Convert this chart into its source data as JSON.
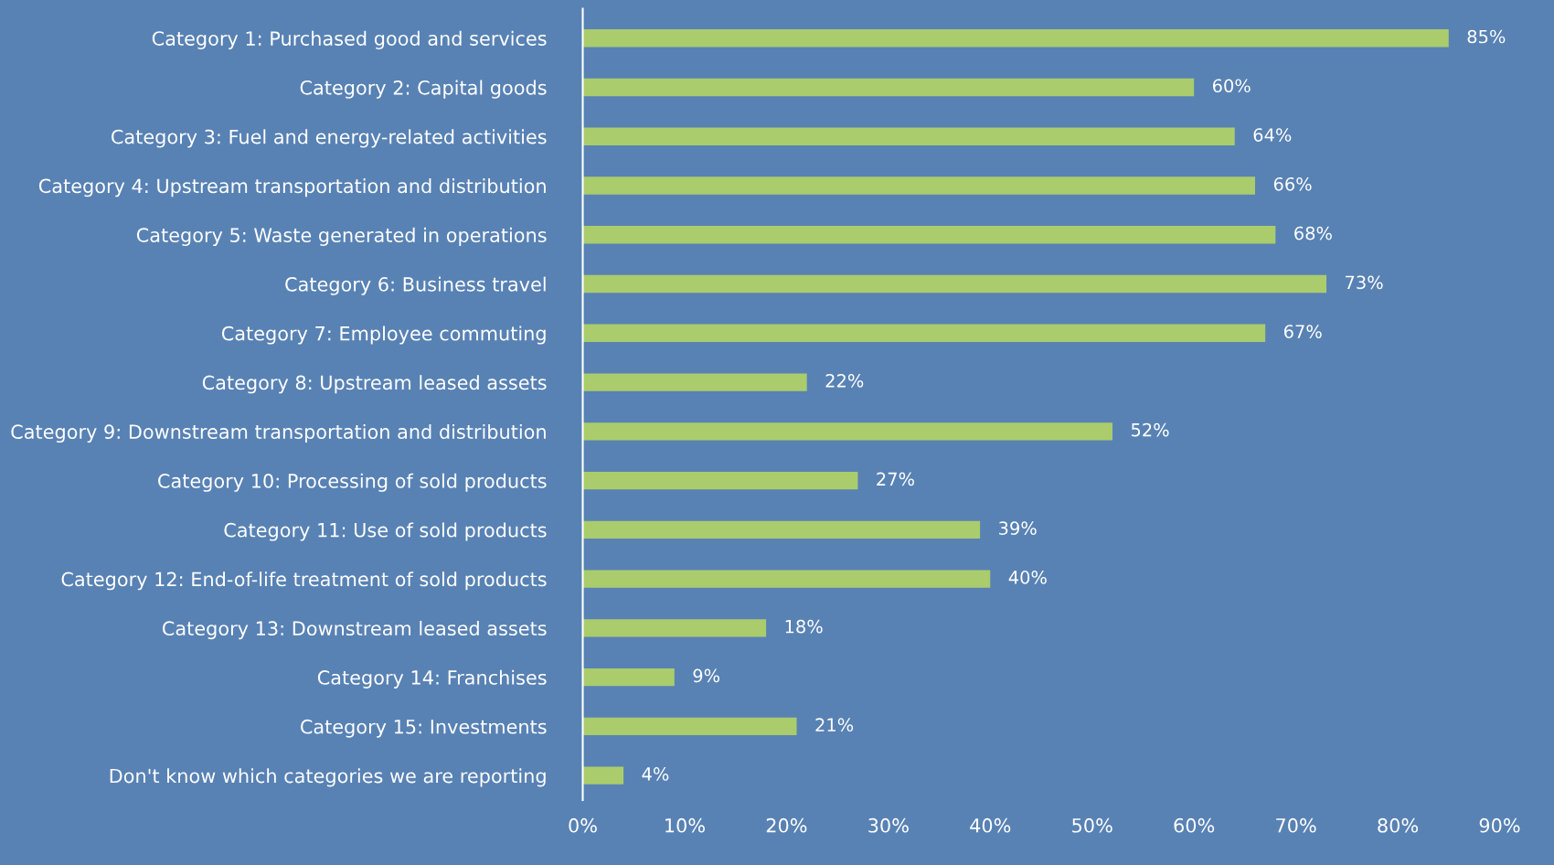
{
  "chart_data": {
    "type": "bar",
    "orientation": "horizontal",
    "categories": [
      "Category 1: Purchased good and services",
      "Category 2: Capital goods",
      "Category 3: Fuel and energy-related activities",
      "Category 4: Upstream transportation and distribution",
      "Category 5: Waste generated in operations",
      "Category 6: Business travel",
      "Category 7: Employee commuting",
      "Category 8: Upstream leased assets",
      "Category 9: Downstream transportation and distribution",
      "Category 10: Processing of sold products",
      "Category 11: Use of sold products",
      "Category 12: End-of-life treatment of sold products",
      "Category 13: Downstream leased assets",
      "Category 14: Franchises",
      "Category 15: Investments",
      "Don't know which categories we are reporting"
    ],
    "values": [
      85,
      60,
      64,
      66,
      68,
      73,
      67,
      22,
      52,
      27,
      39,
      40,
      18,
      9,
      21,
      4
    ],
    "value_labels": [
      "85%",
      "60%",
      "64%",
      "66%",
      "68%",
      "73%",
      "67%",
      "22%",
      "52%",
      "27%",
      "39%",
      "40%",
      "18%",
      "9%",
      "21%",
      "4%"
    ],
    "color": "#aacc6c",
    "xlim": [
      0,
      90
    ],
    "xticks": [
      {
        "value": 0,
        "label": "0%"
      },
      {
        "value": 10,
        "label": "10%"
      },
      {
        "value": 20,
        "label": "20%"
      },
      {
        "value": 30,
        "label": "30%"
      },
      {
        "value": 40,
        "label": "40%"
      },
      {
        "value": 50,
        "label": "50%"
      },
      {
        "value": 60,
        "label": "60%"
      },
      {
        "value": 70,
        "label": "70%"
      },
      {
        "value": 80,
        "label": "80%"
      },
      {
        "value": 90,
        "label": "90%"
      }
    ],
    "grid": false
  }
}
